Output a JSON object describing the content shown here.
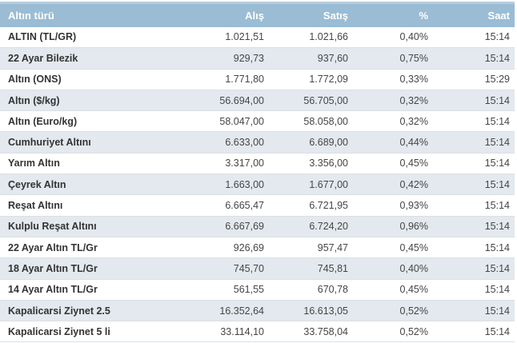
{
  "widget": {
    "name": "gold-prices-table"
  },
  "colors": {
    "header_bg": "#9abcd4",
    "header_top_edge": "#b5cddd",
    "header_text": "#ffffff",
    "row_bg": "#ffffff",
    "row_alt_bg": "#e3e9ee",
    "text": "#454545",
    "label_text": "#333333",
    "border": "#dcdfe2"
  },
  "table": {
    "columns": [
      {
        "label": "Altın türü",
        "align": "left"
      },
      {
        "label": "Alış",
        "align": "right"
      },
      {
        "label": "Satış",
        "align": "right"
      },
      {
        "label": "%",
        "align": "right"
      },
      {
        "label": "Saat",
        "align": "right"
      }
    ],
    "rows": [
      [
        "ALTIN (TL/GR)",
        "1.021,51",
        "1.021,66",
        "0,40%",
        "15:14"
      ],
      [
        "22 Ayar Bilezik",
        "929,73",
        "937,60",
        "0,75%",
        "15:14"
      ],
      [
        "Altın (ONS)",
        "1.771,80",
        "1.772,09",
        "0,33%",
        "15:29"
      ],
      [
        "Altın ($/kg)",
        "56.694,00",
        "56.705,00",
        "0,32%",
        "15:14"
      ],
      [
        "Altın (Euro/kg)",
        "58.047,00",
        "58.058,00",
        "0,32%",
        "15:14"
      ],
      [
        "Cumhuriyet Altını",
        "6.633,00",
        "6.689,00",
        "0,44%",
        "15:14"
      ],
      [
        "Yarım Altın",
        "3.317,00",
        "3.356,00",
        "0,45%",
        "15:14"
      ],
      [
        "Çeyrek Altın",
        "1.663,00",
        "1.677,00",
        "0,42%",
        "15:14"
      ],
      [
        "Reşat Altını",
        "6.665,47",
        "6.721,95",
        "0,93%",
        "15:14"
      ],
      [
        "Kulplu Reşat Altını",
        "6.667,69",
        "6.724,20",
        "0,96%",
        "15:14"
      ],
      [
        "22 Ayar Altın TL/Gr",
        "926,69",
        "957,47",
        "0,45%",
        "15:14"
      ],
      [
        "18 Ayar Altın TL/Gr",
        "745,70",
        "745,81",
        "0,40%",
        "15:14"
      ],
      [
        "14 Ayar Altın TL/Gr",
        "561,55",
        "670,78",
        "0,45%",
        "15:14"
      ],
      [
        "Kapalicarsi Ziynet 2.5",
        "16.352,64",
        "16.613,05",
        "0,52%",
        "15:14"
      ],
      [
        "Kapalicarsi Ziynet 5 li",
        "33.114,10",
        "33.758,04",
        "0,52%",
        "15:14"
      ]
    ]
  }
}
